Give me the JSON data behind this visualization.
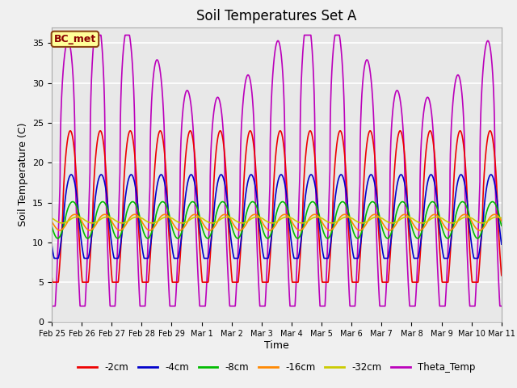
{
  "title": "Soil Temperatures Set A",
  "xlabel": "Time",
  "ylabel": "Soil Temperature (C)",
  "ylim": [
    0,
    37
  ],
  "background_color": "#e8e8e8",
  "grid_color": "#ffffff",
  "annotation_text": "BC_met",
  "annotation_bg": "#ffff99",
  "annotation_border": "#8B4513",
  "annotation_text_color": "#8B0000",
  "x_tick_labels": [
    "Feb 25",
    "Feb 26",
    "Feb 27",
    "Feb 28",
    "Feb 29",
    "Mar 1",
    "Mar 2",
    "Mar 3",
    "Mar 4",
    "Mar 5",
    "Mar 6",
    "Mar 7",
    "Mar 8",
    "Mar 9",
    "Mar 10",
    "Mar 11"
  ],
  "series_colors": {
    "-2cm": "#ee0000",
    "-4cm": "#0000cc",
    "-8cm": "#00bb00",
    "-16cm": "#ff8800",
    "-32cm": "#cccc00",
    "Theta_Temp": "#bb00bb"
  },
  "legend_order": [
    "-2cm",
    "-4cm",
    "-8cm",
    "-16cm",
    "-32cm",
    "Theta_Temp"
  ],
  "figsize": [
    6.4,
    4.8
  ],
  "dpi": 100
}
